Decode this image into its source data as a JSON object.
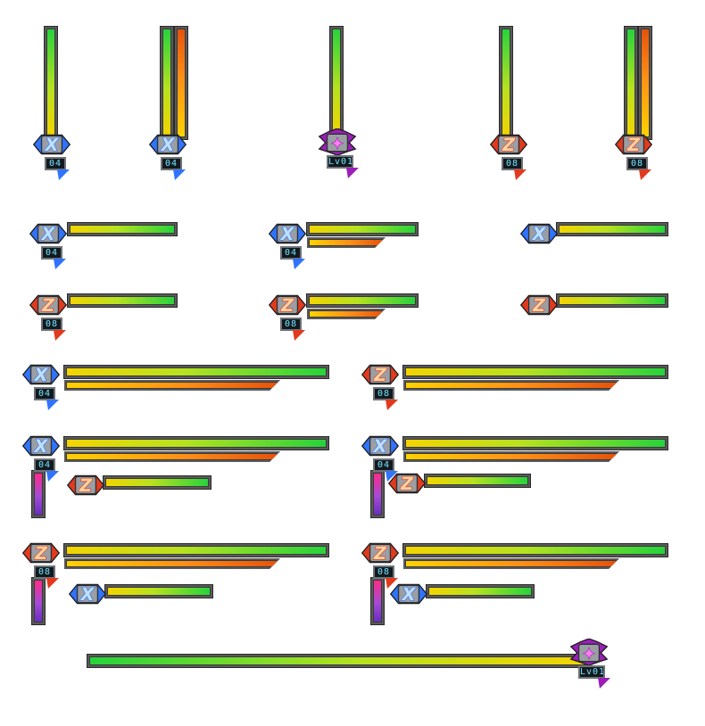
{
  "emblems": {
    "x": {
      "letter": "X",
      "level": "04",
      "primary": "#2f73ff",
      "secondary": "#bfe0ff",
      "name": "x-emblem"
    },
    "z": {
      "letter": "Z",
      "level": "08",
      "primary": "#e23a1e",
      "secondary": "#ffd2a0",
      "name": "z-emblem"
    },
    "boss": {
      "letter": "✦",
      "level": "Lv01",
      "primary": "#9a1fb8",
      "secondary": "#ff7df3",
      "name": "boss-emblem"
    }
  },
  "colors": {
    "life_bar": [
      "#f3d400",
      "#27d33b"
    ],
    "weapon_bar": [
      "#ffd200",
      "#e6520c"
    ],
    "sub_bar": [
      "#ff2a8a",
      "#6a2fbf"
    ],
    "frame": "#5a5a5a"
  },
  "huds": [
    {
      "id": "v-x-life",
      "emblem": "x",
      "orientation": "vertical",
      "bars": [
        "life"
      ],
      "show_level": true
    },
    {
      "id": "v-x-life-weapon",
      "emblem": "x",
      "orientation": "vertical",
      "bars": [
        "life",
        "weapon"
      ],
      "show_level": true
    },
    {
      "id": "v-boss-life",
      "emblem": "boss",
      "orientation": "vertical",
      "bars": [
        "life"
      ],
      "show_level": true
    },
    {
      "id": "v-z-life",
      "emblem": "z",
      "orientation": "vertical",
      "bars": [
        "life"
      ],
      "show_level": true
    },
    {
      "id": "v-z-life-weapon",
      "emblem": "z",
      "orientation": "vertical",
      "bars": [
        "life",
        "weapon"
      ],
      "show_level": true
    },
    {
      "id": "h-x-life-short",
      "emblem": "x",
      "orientation": "horizontal",
      "bars": [
        "life"
      ],
      "show_level": true
    },
    {
      "id": "h-x-life-weapon-short",
      "emblem": "x",
      "orientation": "horizontal",
      "bars": [
        "life",
        "weapon"
      ],
      "show_level": true
    },
    {
      "id": "h-x-life-nolevel",
      "emblem": "x",
      "orientation": "horizontal",
      "bars": [
        "life"
      ],
      "show_level": false
    },
    {
      "id": "h-z-life-short",
      "emblem": "z",
      "orientation": "horizontal",
      "bars": [
        "life"
      ],
      "show_level": true
    },
    {
      "id": "h-z-life-weapon-short",
      "emblem": "z",
      "orientation": "horizontal",
      "bars": [
        "life",
        "weapon"
      ],
      "show_level": true
    },
    {
      "id": "h-z-life-nolevel",
      "emblem": "z",
      "orientation": "horizontal",
      "bars": [
        "life"
      ],
      "show_level": false
    },
    {
      "id": "h-x-life-weapon-long",
      "emblem": "x",
      "orientation": "horizontal",
      "bars": [
        "life",
        "weapon"
      ],
      "show_level": true
    },
    {
      "id": "h-z-life-weapon-long",
      "emblem": "z",
      "orientation": "horizontal",
      "bars": [
        "life",
        "weapon"
      ],
      "show_level": true
    },
    {
      "id": "combo-x-with-z-1",
      "emblem": "x",
      "partner": "z",
      "orientation": "horizontal",
      "bars": [
        "life",
        "weapon"
      ],
      "show_level": true
    },
    {
      "id": "combo-x-with-z-2",
      "emblem": "x",
      "partner": "z",
      "orientation": "horizontal",
      "bars": [
        "life",
        "weapon"
      ],
      "show_level": true
    },
    {
      "id": "combo-z-with-x-1",
      "emblem": "z",
      "partner": "x",
      "orientation": "horizontal",
      "bars": [
        "life",
        "weapon"
      ],
      "show_level": true
    },
    {
      "id": "combo-z-with-x-2",
      "emblem": "z",
      "partner": "x",
      "orientation": "horizontal",
      "bars": [
        "life",
        "weapon"
      ],
      "show_level": true
    },
    {
      "id": "boss-long-bar",
      "emblem": "boss",
      "orientation": "horizontal-reverse",
      "bars": [
        "life"
      ],
      "show_level": true
    }
  ]
}
